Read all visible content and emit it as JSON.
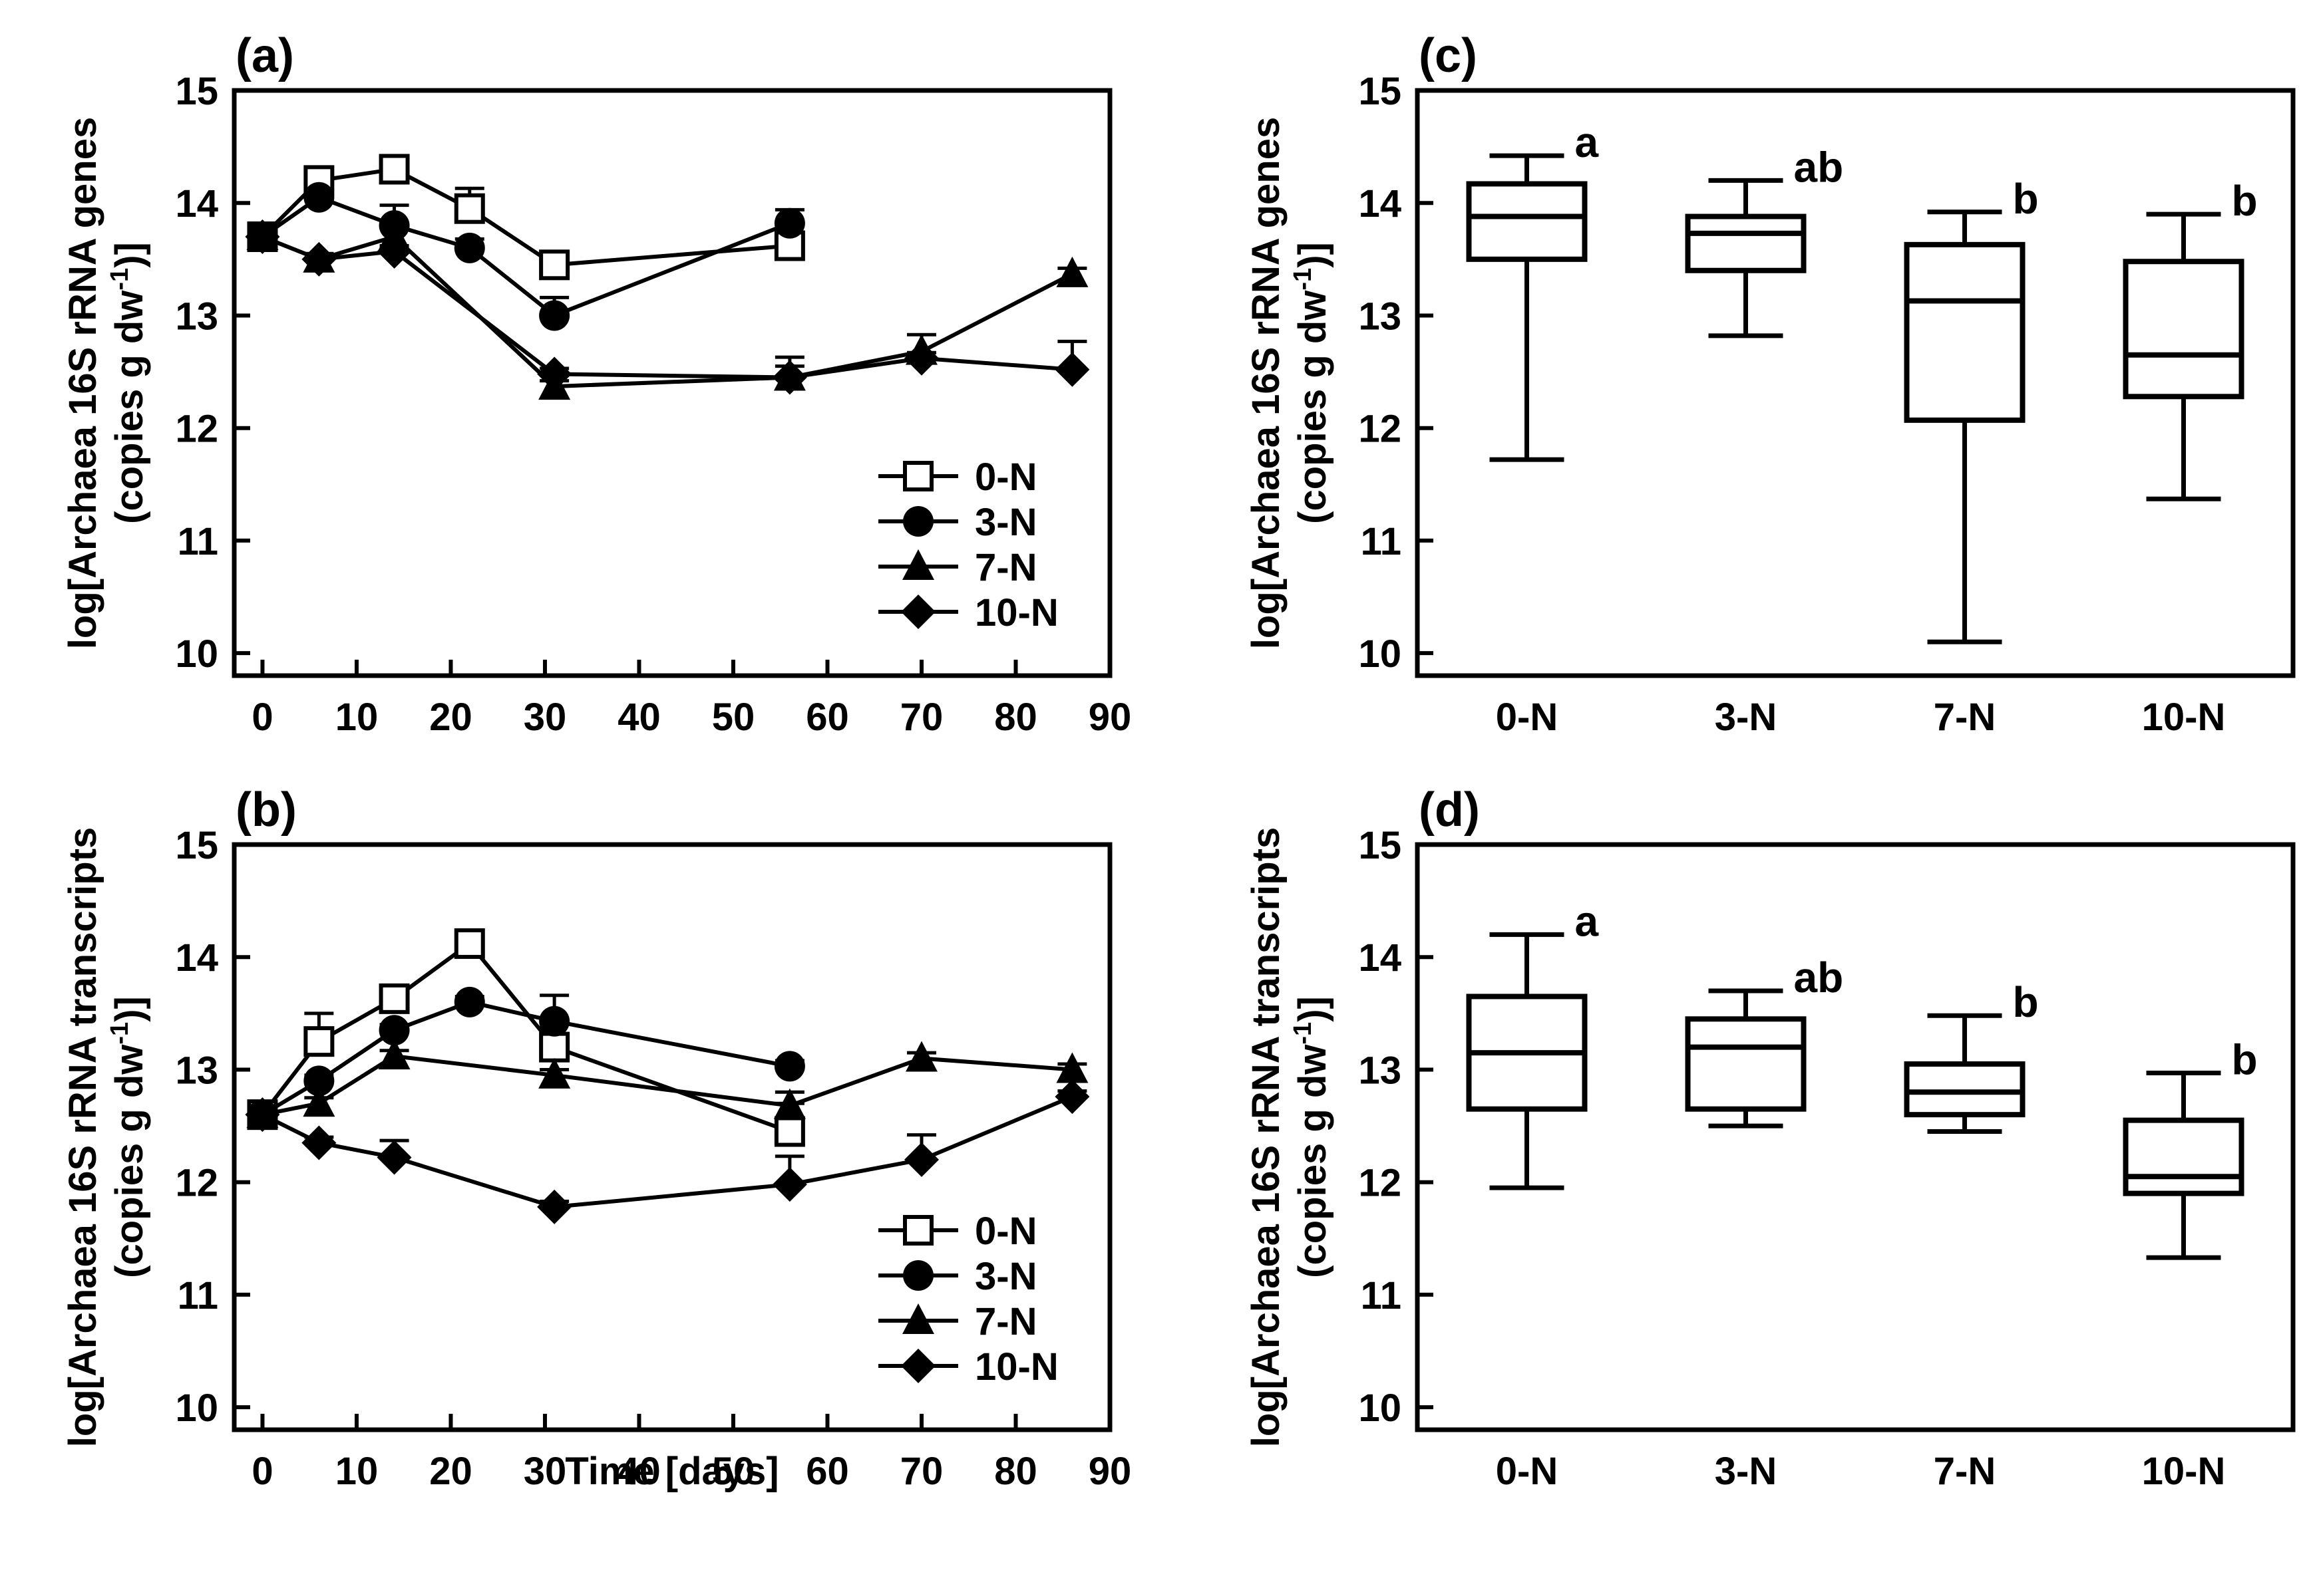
{
  "chart_data": [
    {
      "panel": "(a)",
      "type": "line",
      "xlabel": "",
      "ylabel": "log[Archaea 16S rRNA genes",
      "ylabel_units_prefix": "(copies g dw",
      "ylabel_units_exp": "-1",
      "ylabel_units_suffix": ")]",
      "xlim": [
        -3,
        90
      ],
      "ylim": [
        9.8,
        15
      ],
      "xticks": [
        "0",
        "10",
        "20",
        "30",
        "40",
        "50",
        "60",
        "70",
        "80",
        "90"
      ],
      "yticks": [
        "10",
        "11",
        "12",
        "13",
        "14",
        "15"
      ],
      "legend": "bottom-right",
      "series": [
        {
          "name": "0-N",
          "marker": "square-open",
          "x": [
            0,
            6,
            14,
            22,
            31,
            56
          ],
          "y": [
            13.7,
            14.2,
            14.3,
            13.95,
            13.45,
            13.62
          ],
          "err": [
            0.1,
            0.05,
            0.1,
            0.18,
            0.05,
            0.06
          ]
        },
        {
          "name": "3-N",
          "marker": "circle",
          "x": [
            0,
            6,
            14,
            22,
            31,
            56
          ],
          "y": [
            13.7,
            14.05,
            13.8,
            13.6,
            13.0,
            13.82
          ],
          "err": [
            0.1,
            0.05,
            0.18,
            0.08,
            0.16,
            0.12
          ]
        },
        {
          "name": "7-N",
          "marker": "triangle",
          "x": [
            0,
            6,
            14,
            31,
            56,
            70,
            86
          ],
          "y": [
            13.7,
            13.5,
            13.7,
            12.37,
            12.45,
            12.68,
            13.37
          ],
          "err": [
            0.1,
            0.05,
            0.12,
            0.05,
            0.1,
            0.15,
            0.05
          ]
        },
        {
          "name": "10-N",
          "marker": "diamond",
          "x": [
            0,
            6,
            14,
            31,
            56,
            70,
            86
          ],
          "y": [
            13.7,
            13.5,
            13.57,
            12.48,
            12.45,
            12.62,
            12.52
          ],
          "err": [
            0.1,
            0.05,
            0.05,
            0.05,
            0.18,
            0.05,
            0.25
          ]
        }
      ]
    },
    {
      "panel": "(b)",
      "type": "line",
      "xlabel": "Time [days]",
      "ylabel": "log[Archaea 16S rRNA transcripts",
      "ylabel_units_prefix": "(copies g dw",
      "ylabel_units_exp": "-1",
      "ylabel_units_suffix": ")]",
      "xlim": [
        -3,
        90
      ],
      "ylim": [
        9.8,
        15
      ],
      "xticks": [
        "0",
        "10",
        "20",
        "30",
        "40",
        "50",
        "60",
        "70",
        "80",
        "90"
      ],
      "yticks": [
        "10",
        "11",
        "12",
        "13",
        "14",
        "15"
      ],
      "legend": "bottom-right",
      "series": [
        {
          "name": "0-N",
          "marker": "square-open",
          "x": [
            0,
            6,
            14,
            22,
            31,
            56
          ],
          "y": [
            12.6,
            13.25,
            13.63,
            14.12,
            13.2,
            12.45
          ],
          "err": [
            0.05,
            0.25,
            0.05,
            0.05,
            0.12,
            0.25
          ]
        },
        {
          "name": "3-N",
          "marker": "circle",
          "x": [
            0,
            6,
            14,
            22,
            31,
            56
          ],
          "y": [
            12.6,
            12.9,
            13.35,
            13.6,
            13.43,
            13.03
          ],
          "err": [
            0.05,
            0.05,
            0.05,
            0.05,
            0.23,
            0.05
          ]
        },
        {
          "name": "7-N",
          "marker": "triangle",
          "x": [
            0,
            6,
            14,
            31,
            56,
            70,
            86
          ],
          "y": [
            12.6,
            12.7,
            13.12,
            12.95,
            12.68,
            13.1,
            13.0
          ],
          "err": [
            0.05,
            0.05,
            0.05,
            0.05,
            0.12,
            0.05,
            0.05
          ]
        },
        {
          "name": "10-N",
          "marker": "diamond",
          "x": [
            0,
            6,
            14,
            31,
            56,
            70,
            86
          ],
          "y": [
            12.6,
            12.35,
            12.22,
            11.78,
            11.98,
            12.2,
            12.76
          ],
          "err": [
            0.05,
            0.05,
            0.15,
            0.05,
            0.25,
            0.22,
            0.05
          ]
        }
      ]
    },
    {
      "panel": "(c)",
      "type": "box",
      "ylabel": "log[Archaea 16S rRNA genes",
      "ylabel_units_prefix": "(copies g dw",
      "ylabel_units_exp": "-1",
      "ylabel_units_suffix": ")]",
      "ylim": [
        9.8,
        15
      ],
      "yticks": [
        "10",
        "11",
        "12",
        "13",
        "14",
        "15"
      ],
      "categories": [
        "0-N",
        "3-N",
        "7-N",
        "10-N"
      ],
      "boxes": [
        {
          "min": 11.72,
          "q1": 13.5,
          "median": 13.88,
          "q3": 14.17,
          "max": 14.42,
          "letter": "a"
        },
        {
          "min": 12.82,
          "q1": 13.4,
          "median": 13.73,
          "q3": 13.88,
          "max": 14.2,
          "letter": "ab"
        },
        {
          "min": 10.1,
          "q1": 12.07,
          "median": 13.13,
          "q3": 13.63,
          "max": 13.92,
          "letter": "b"
        },
        {
          "min": 11.37,
          "q1": 12.28,
          "median": 12.65,
          "q3": 13.48,
          "max": 13.9,
          "letter": "b"
        }
      ]
    },
    {
      "panel": "(d)",
      "type": "box",
      "ylabel": "log[Archaea 16S rRNA transcripts",
      "ylabel_units_prefix": "(copies g dw",
      "ylabel_units_exp": "-1",
      "ylabel_units_suffix": ")]",
      "ylim": [
        9.8,
        15
      ],
      "yticks": [
        "10",
        "11",
        "12",
        "13",
        "14",
        "15"
      ],
      "categories": [
        "0-N",
        "3-N",
        "7-N",
        "10-N"
      ],
      "boxes": [
        {
          "min": 11.95,
          "q1": 12.65,
          "median": 13.15,
          "q3": 13.65,
          "max": 14.2,
          "letter": "a"
        },
        {
          "min": 12.5,
          "q1": 12.65,
          "median": 13.2,
          "q3": 13.45,
          "max": 13.7,
          "letter": "ab"
        },
        {
          "min": 12.45,
          "q1": 12.6,
          "median": 12.8,
          "q3": 13.05,
          "max": 13.48,
          "letter": "b"
        },
        {
          "min": 11.33,
          "q1": 11.9,
          "median": 12.05,
          "q3": 12.55,
          "max": 12.97,
          "letter": "b"
        }
      ]
    }
  ]
}
